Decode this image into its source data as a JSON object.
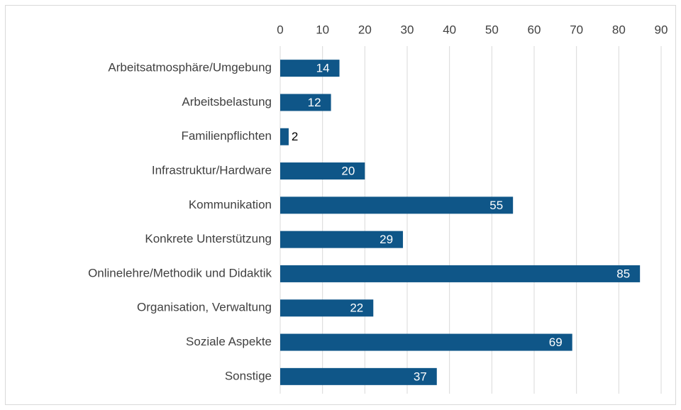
{
  "chart_data": {
    "type": "bar",
    "orientation": "horizontal",
    "categories": [
      "Arbeitsatmosphäre/Umgebung",
      "Arbeitsbelastung",
      "Familienpflichten",
      "Infrastruktur/Hardware",
      "Kommunikation",
      "Konkrete Unterstützung",
      "Onlinelehre/Methodik und Didaktik",
      "Organisation, Verwaltung",
      "Soziale Aspekte",
      "Sonstige"
    ],
    "values": [
      14,
      12,
      2,
      20,
      55,
      29,
      85,
      22,
      69,
      37
    ],
    "color": "#0f5688",
    "xlim": [
      0,
      90
    ],
    "xticks": [
      0,
      10,
      20,
      30,
      40,
      50,
      60,
      70,
      80,
      90
    ],
    "grid": true
  }
}
